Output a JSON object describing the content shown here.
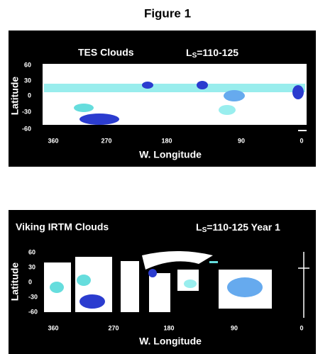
{
  "title": "Figure 1",
  "panels": [
    {
      "title": "TES Clouds",
      "ls_symbol": "L",
      "ls_subscript": "S",
      "ls_range": "=110-125",
      "y_label": "Latitude",
      "y_ticks": [
        "60",
        "30",
        "0",
        "-30",
        "-60"
      ],
      "x_ticks": [
        "360",
        "270",
        "180",
        "90",
        "0"
      ],
      "x_label": "W. Longitude"
    },
    {
      "title": "Viking IRTM Clouds",
      "ls_symbol": "L",
      "ls_subscript": "S",
      "ls_range": "=110-125 Year 1",
      "y_label": "Latitude",
      "y_ticks": [
        "60",
        "30",
        "0",
        "-30",
        "-60"
      ],
      "x_ticks": [
        "360",
        "270",
        "180",
        "90",
        "0"
      ],
      "x_label": "W. Longitude"
    }
  ]
}
